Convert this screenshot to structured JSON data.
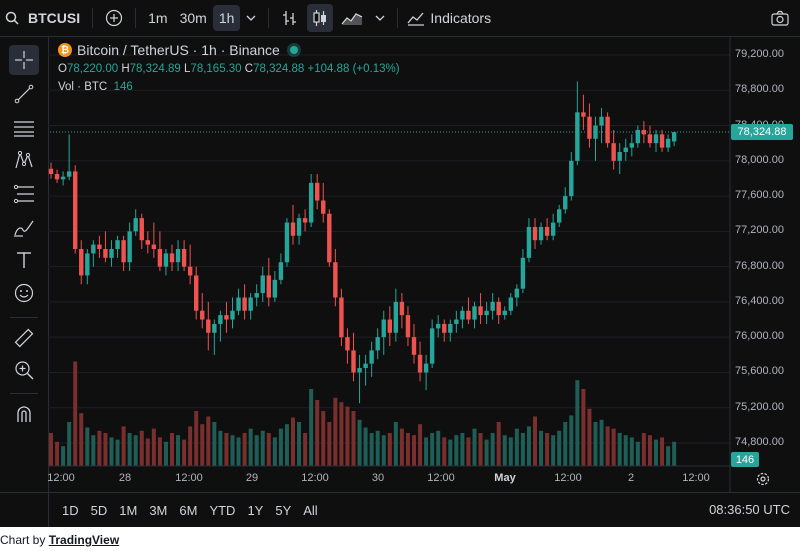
{
  "toolbar": {
    "symbol": "BTCUSI",
    "intervals": [
      "1m",
      "30m",
      "1h"
    ],
    "active_interval": "1h",
    "indicators_label": "Indicators"
  },
  "legend": {
    "title": "Bitcoin / TetherUS · 1h · Binance",
    "o_label": "O",
    "o": "78,220.00",
    "h_label": "H",
    "h": "78,324.89",
    "l_label": "L",
    "l": "78,165.30",
    "c_label": "C",
    "c": "78,324.88",
    "change": "+104.88 (+0.13%)",
    "vol_label": "Vol · BTC",
    "vol_value": "146"
  },
  "price_axis": {
    "labels": [
      "79,200.00",
      "78,800.00",
      "78,400.00",
      "78,000.00",
      "77,600.00",
      "77,200.00",
      "76,800.00",
      "76,400.00",
      "76,000.00",
      "75,600.00",
      "75,200.00",
      "74,800.00"
    ],
    "current_price": "78,324.88",
    "volume_tag": "146"
  },
  "time_axis": [
    {
      "label": "12:00",
      "bold": false
    },
    {
      "label": "28",
      "bold": false
    },
    {
      "label": "12:00",
      "bold": false
    },
    {
      "label": "29",
      "bold": false
    },
    {
      "label": "12:00",
      "bold": false
    },
    {
      "label": "30",
      "bold": false
    },
    {
      "label": "12:00",
      "bold": false
    },
    {
      "label": "May",
      "bold": true
    },
    {
      "label": "12:00",
      "bold": false
    },
    {
      "label": "2",
      "bold": false
    },
    {
      "label": "12:00",
      "bold": false
    }
  ],
  "ranges": [
    "1D",
    "5D",
    "1M",
    "3M",
    "6M",
    "YTD",
    "1Y",
    "5Y",
    "All"
  ],
  "clock": "08:36:50 UTC",
  "credit": {
    "prefix": "Chart by ",
    "link": "TradingView"
  },
  "colors": {
    "up": "#26a69a",
    "down": "#ef5350",
    "background": "#0f0f0f"
  },
  "chart_data": {
    "type": "candlestick",
    "title": "Bitcoin / TetherUS · 1h · Binance",
    "ylim": [
      74650,
      79350
    ],
    "ohlc": [
      [
        77910,
        77980,
        77800,
        77850
      ],
      [
        77850,
        77900,
        77750,
        77790
      ],
      [
        77790,
        77880,
        77720,
        77820
      ],
      [
        77820,
        78300,
        77780,
        77880
      ],
      [
        77880,
        77950,
        76950,
        77000
      ],
      [
        77000,
        77100,
        76600,
        76700
      ],
      [
        76700,
        77000,
        76600,
        76950
      ],
      [
        76950,
        77100,
        76800,
        77050
      ],
      [
        77050,
        77150,
        76900,
        77000
      ],
      [
        77000,
        77200,
        76850,
        76900
      ],
      [
        76900,
        77100,
        76800,
        77000
      ],
      [
        77000,
        77150,
        76900,
        77100
      ],
      [
        77100,
        77150,
        76750,
        76850
      ],
      [
        76850,
        77300,
        76750,
        77200
      ],
      [
        77200,
        77450,
        77150,
        77350
      ],
      [
        77350,
        77400,
        77000,
        77100
      ],
      [
        77100,
        77200,
        76950,
        77050
      ],
      [
        77050,
        77300,
        76900,
        77000
      ],
      [
        77000,
        77200,
        76750,
        76800
      ],
      [
        76800,
        77000,
        76700,
        76950
      ],
      [
        76950,
        77050,
        76750,
        76850
      ],
      [
        76850,
        77100,
        76750,
        77000
      ],
      [
        77000,
        77100,
        76750,
        76800
      ],
      [
        76800,
        77050,
        76600,
        76700
      ],
      [
        76700,
        76800,
        76200,
        76300
      ],
      [
        76300,
        76500,
        76100,
        76200
      ],
      [
        76200,
        76400,
        75850,
        76050
      ],
      [
        76050,
        76200,
        75800,
        76150
      ],
      [
        76150,
        76300,
        75950,
        76250
      ],
      [
        76250,
        76400,
        76050,
        76200
      ],
      [
        76200,
        76450,
        76100,
        76300
      ],
      [
        76300,
        76550,
        76250,
        76450
      ],
      [
        76450,
        76600,
        76200,
        76300
      ],
      [
        76300,
        76500,
        76200,
        76450
      ],
      [
        76450,
        76600,
        76350,
        76500
      ],
      [
        76500,
        76800,
        76400,
        76700
      ],
      [
        76700,
        76900,
        76350,
        76450
      ],
      [
        76450,
        76750,
        76400,
        76650
      ],
      [
        76650,
        76950,
        76600,
        76850
      ],
      [
        76850,
        77350,
        76800,
        77300
      ],
      [
        77300,
        77500,
        77050,
        77150
      ],
      [
        77150,
        77400,
        77050,
        77350
      ],
      [
        77350,
        77450,
        77200,
        77300
      ],
      [
        77300,
        77850,
        77250,
        77750
      ],
      [
        77750,
        77850,
        77450,
        77550
      ],
      [
        77550,
        77750,
        77300,
        77400
      ],
      [
        77400,
        77450,
        76800,
        76850
      ],
      [
        76850,
        77000,
        76350,
        76450
      ],
      [
        76450,
        76550,
        75900,
        76000
      ],
      [
        76000,
        76100,
        75700,
        75850
      ],
      [
        75850,
        76050,
        75500,
        75600
      ],
      [
        75600,
        75800,
        75250,
        75650
      ],
      [
        75650,
        75800,
        75450,
        75700
      ],
      [
        75700,
        75950,
        75550,
        75850
      ],
      [
        75850,
        76100,
        75750,
        76000
      ],
      [
        76000,
        76300,
        75800,
        76200
      ],
      [
        76200,
        76350,
        75900,
        76050
      ],
      [
        76050,
        76550,
        75950,
        76400
      ],
      [
        76400,
        76500,
        76100,
        76250
      ],
      [
        76250,
        76350,
        75900,
        76000
      ],
      [
        76000,
        76150,
        75700,
        75800
      ],
      [
        75800,
        75950,
        75500,
        75600
      ],
      [
        75600,
        75800,
        75400,
        75700
      ],
      [
        75700,
        76200,
        75650,
        76100
      ],
      [
        76100,
        76250,
        76000,
        76150
      ],
      [
        76150,
        76200,
        75950,
        76050
      ],
      [
        76050,
        76200,
        75950,
        76150
      ],
      [
        76150,
        76300,
        76050,
        76200
      ],
      [
        76200,
        76350,
        76100,
        76300
      ],
      [
        76300,
        76450,
        76150,
        76200
      ],
      [
        76200,
        76400,
        76100,
        76350
      ],
      [
        76350,
        76500,
        76150,
        76250
      ],
      [
        76250,
        76400,
        76150,
        76300
      ],
      [
        76300,
        76500,
        76200,
        76400
      ],
      [
        76400,
        76450,
        76150,
        76250
      ],
      [
        76250,
        76350,
        76200,
        76300
      ],
      [
        76300,
        76500,
        76250,
        76450
      ],
      [
        76450,
        76600,
        76350,
        76550
      ],
      [
        76550,
        77000,
        76500,
        76900
      ],
      [
        76900,
        77350,
        76850,
        77250
      ],
      [
        77250,
        77350,
        77000,
        77100
      ],
      [
        77100,
        77300,
        77050,
        77250
      ],
      [
        77250,
        77350,
        77100,
        77150
      ],
      [
        77150,
        77400,
        77100,
        77300
      ],
      [
        77300,
        77500,
        77250,
        77450
      ],
      [
        77450,
        77700,
        77400,
        77600
      ],
      [
        77600,
        78100,
        77550,
        78000
      ],
      [
        78000,
        78900,
        77950,
        78550
      ],
      [
        78550,
        78750,
        78350,
        78500
      ],
      [
        78500,
        78650,
        78150,
        78250
      ],
      [
        78250,
        78500,
        78000,
        78400
      ],
      [
        78400,
        78600,
        78200,
        78500
      ],
      [
        78500,
        78550,
        78150,
        78200
      ],
      [
        78200,
        78350,
        77900,
        78000
      ],
      [
        78000,
        78200,
        77850,
        78100
      ],
      [
        78100,
        78250,
        78000,
        78150
      ],
      [
        78150,
        78300,
        78050,
        78200
      ],
      [
        78200,
        78400,
        78150,
        78350
      ],
      [
        78350,
        78450,
        78200,
        78300
      ],
      [
        78300,
        78400,
        78150,
        78200
      ],
      [
        78200,
        78350,
        78100,
        78300
      ],
      [
        78300,
        78350,
        78100,
        78150
      ],
      [
        78150,
        78300,
        78100,
        78250
      ],
      [
        78220,
        78324.89,
        78165.3,
        78324.88
      ]
    ],
    "volume": [
      30,
      22,
      18,
      40,
      95,
      48,
      35,
      28,
      32,
      30,
      26,
      24,
      36,
      30,
      28,
      32,
      25,
      34,
      26,
      22,
      30,
      28,
      24,
      36,
      50,
      38,
      45,
      40,
      32,
      30,
      28,
      26,
      30,
      34,
      28,
      32,
      30,
      26,
      34,
      38,
      44,
      40,
      30,
      70,
      60,
      50,
      40,
      62,
      58,
      54,
      50,
      42,
      35,
      30,
      32,
      28,
      30,
      40,
      34,
      30,
      28,
      38,
      26,
      30,
      32,
      26,
      24,
      28,
      30,
      26,
      34,
      30,
      24,
      30,
      40,
      28,
      26,
      34,
      30,
      36,
      45,
      32,
      30,
      28,
      32,
      40,
      46,
      78,
      70,
      52,
      40,
      42,
      36,
      34,
      30,
      28,
      26,
      22,
      30,
      28,
      24,
      26,
      18,
      22
    ]
  }
}
